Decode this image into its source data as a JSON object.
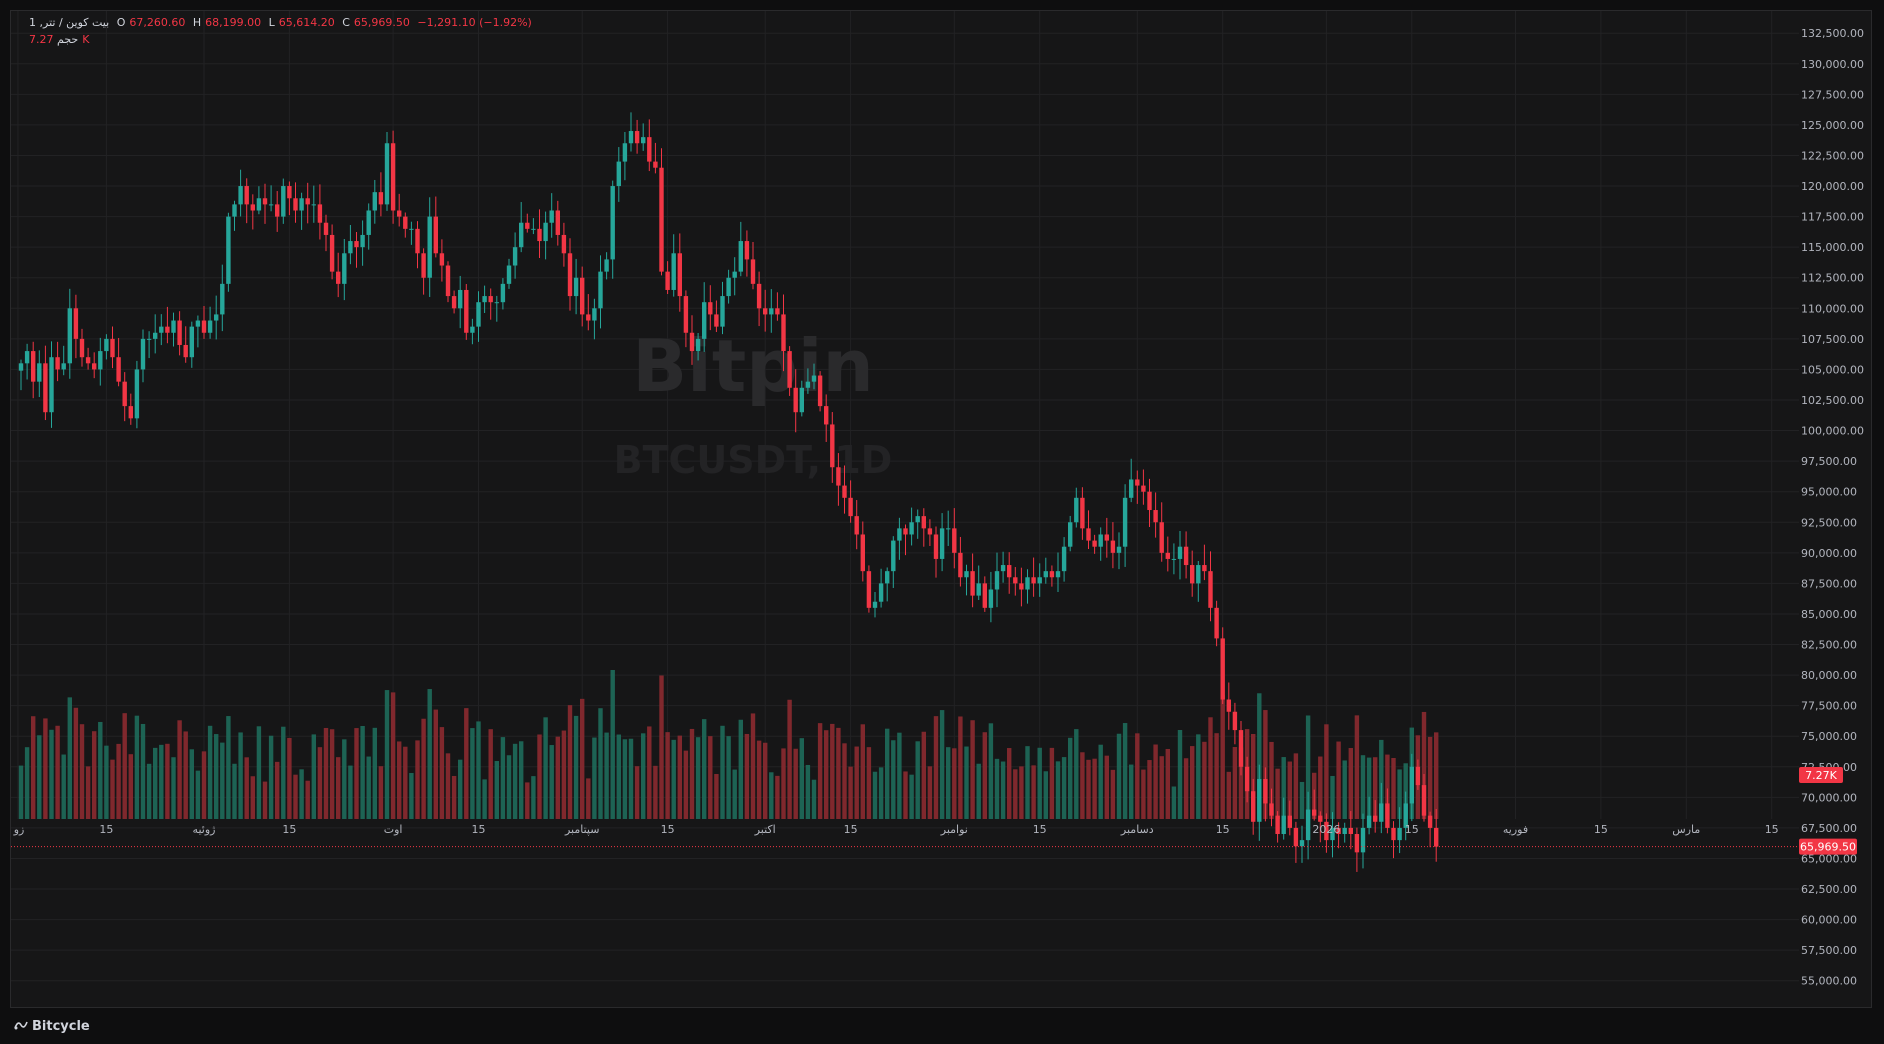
{
  "legend": {
    "symbol": "بیت کوین / تتر, 1",
    "o_label": "O",
    "o_value": "67,260.60",
    "h_label": "H",
    "h_value": "68,199.00",
    "l_label": "L",
    "l_value": "65,614.20",
    "c_label": "C",
    "c_value": "65,969.50",
    "change": "−1,291.10 (−1.92%)",
    "volume_label": "حجم",
    "volume_value": "7.27K"
  },
  "watermark": {
    "line1": "Bitpin",
    "line2": "BTCUSDT, 1D"
  },
  "footer": {
    "brand": "Bitcycle"
  },
  "colors": {
    "up": "#26a69a",
    "down": "#f23645",
    "background": "#161617",
    "grid": "#222224",
    "text": "#b2b5be"
  },
  "chart_data": {
    "type": "candlestick",
    "symbol": "BTCUSDT",
    "interval": "1D",
    "ylim": [
      53750,
      133500
    ],
    "y_ticks": [
      55000,
      57500,
      60000,
      62500,
      65000,
      67500,
      70000,
      72500,
      75000,
      77500,
      80000,
      82500,
      85000,
      87500,
      90000,
      92500,
      95000,
      97500,
      100000,
      102500,
      105000,
      107500,
      110000,
      112500,
      115000,
      117500,
      120000,
      122500,
      125000,
      127500,
      130000,
      132500
    ],
    "last_price": 65969.5,
    "last_price_label": "65,969.50",
    "last_volume_label": "7.27K",
    "x_ticks": [
      {
        "label": "زو",
        "day": -0.5
      },
      {
        "label": "15",
        "day": 14
      },
      {
        "label": "ژوئیه",
        "day": 30
      },
      {
        "label": "15",
        "day": 44
      },
      {
        "label": "اوت",
        "day": 61
      },
      {
        "label": "15",
        "day": 75
      },
      {
        "label": "سپتامبر",
        "day": 92
      },
      {
        "label": "15",
        "day": 106
      },
      {
        "label": "اکتبر",
        "day": 122
      },
      {
        "label": "15",
        "day": 136
      },
      {
        "label": "نوامبر",
        "day": 153
      },
      {
        "label": "15",
        "day": 167
      },
      {
        "label": "دسامبر",
        "day": 183
      },
      {
        "label": "15",
        "day": 197
      },
      {
        "label": "2026",
        "day": 214
      },
      {
        "label": "15",
        "day": 228
      },
      {
        "label": "فوریه",
        "day": 245
      },
      {
        "label": "15",
        "day": 259
      },
      {
        "label": "مارس",
        "day": 273
      },
      {
        "label": "15",
        "day": 287
      }
    ],
    "closes": [
      105500,
      106500,
      104000,
      105500,
      101500,
      106000,
      105000,
      105500,
      110000,
      107500,
      106000,
      105500,
      105000,
      106500,
      107500,
      106000,
      104000,
      102000,
      101000,
      105000,
      107500,
      107500,
      108000,
      108500,
      108000,
      109000,
      107000,
      106000,
      108500,
      109000,
      108000,
      109000,
      109500,
      112000,
      117500,
      118500,
      120000,
      118500,
      118000,
      119000,
      118500,
      118500,
      117500,
      120000,
      119000,
      118000,
      119000,
      118500,
      118500,
      117000,
      116000,
      113000,
      112000,
      114500,
      115500,
      115000,
      116000,
      118000,
      119500,
      118500,
      123500,
      118000,
      117500,
      116500,
      116500,
      114500,
      112500,
      117500,
      114500,
      113500,
      111000,
      110000,
      111500,
      108000,
      108500,
      110500,
      111000,
      110500,
      110500,
      112000,
      113500,
      115000,
      117000,
      116500,
      116500,
      115500,
      117000,
      118000,
      116000,
      114500,
      111000,
      112500,
      109500,
      109000,
      110000,
      113000,
      114000,
      120000,
      122000,
      123500,
      124500,
      123500,
      124000,
      122000,
      121500,
      113000,
      111500,
      114500,
      111000,
      108000,
      106500,
      107500,
      110500,
      109500,
      108500,
      111000,
      112500,
      113000,
      115500,
      114000,
      112000,
      110000,
      109500,
      110000,
      109500,
      106500,
      103500,
      101500,
      103500,
      104000,
      104500,
      102000,
      100500,
      97000,
      95500,
      94500,
      93000,
      91500,
      88500,
      85500,
      86000,
      87500,
      88500,
      91000,
      92000,
      91500,
      92500,
      93000,
      92000,
      91500,
      89500,
      92000,
      92000,
      90000,
      88000,
      88500,
      86500,
      87500,
      85500,
      87000,
      88500,
      89000,
      88000,
      87500,
      87000,
      88000,
      87500,
      88000,
      88500,
      88000,
      88500,
      90500,
      92500,
      94500,
      92000,
      91000,
      90500,
      91500,
      91000,
      90000,
      90500,
      94500,
      96000,
      95500,
      95000,
      93500,
      92500,
      90000,
      89500,
      89500,
      90500,
      89000,
      87500,
      89000,
      88500,
      85500,
      83000,
      78000,
      77000,
      75500,
      72500,
      70500,
      68000,
      71500,
      69500,
      68500,
      67000,
      68500,
      67500,
      66000,
      66500,
      69000,
      68500,
      68000,
      66500,
      67500,
      67000,
      67500,
      67000,
      65500,
      67500,
      68500,
      68000,
      69500,
      67500,
      66500,
      67500,
      69500,
      72500,
      71000,
      68500,
      67500,
      65969.5
    ]
  }
}
